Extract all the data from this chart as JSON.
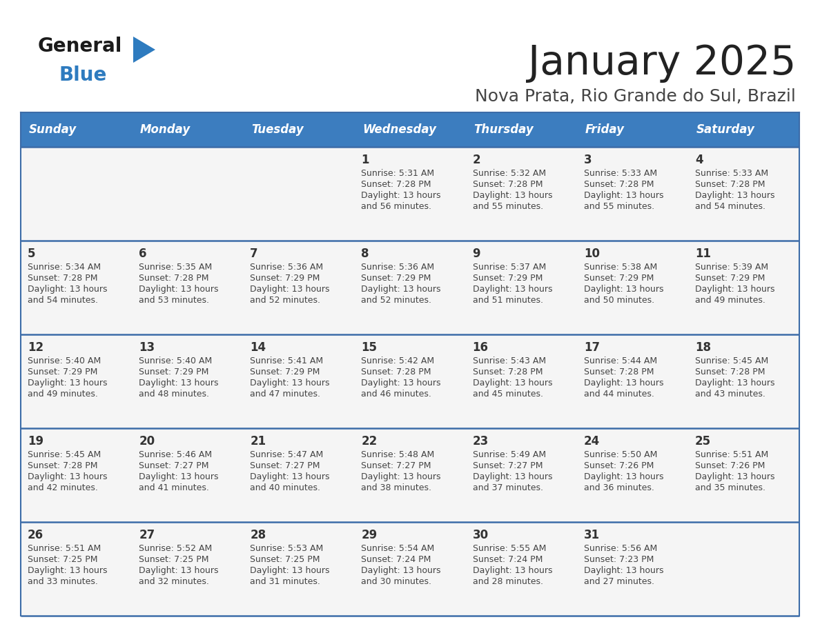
{
  "title": "January 2025",
  "subtitle": "Nova Prata, Rio Grande do Sul, Brazil",
  "days_of_week": [
    "Sunday",
    "Monday",
    "Tuesday",
    "Wednesday",
    "Thursday",
    "Friday",
    "Saturday"
  ],
  "header_bg": "#3c7dbf",
  "header_text": "#ffffff",
  "row_bg": "#f5f5f5",
  "separator_color": "#3c6ca8",
  "cell_text_color": "#444444",
  "day_num_color": "#333333",
  "title_color": "#222222",
  "subtitle_color": "#444444",
  "logo_general_color": "#1a1a1a",
  "logo_blue_color": "#2e7bbf",
  "calendar_data": [
    {
      "day": 1,
      "col": 3,
      "row": 0,
      "sunrise": "5:31 AM",
      "sunset": "7:28 PM",
      "daylight_h": "13 hours",
      "daylight_m": "and 56 minutes."
    },
    {
      "day": 2,
      "col": 4,
      "row": 0,
      "sunrise": "5:32 AM",
      "sunset": "7:28 PM",
      "daylight_h": "13 hours",
      "daylight_m": "and 55 minutes."
    },
    {
      "day": 3,
      "col": 5,
      "row": 0,
      "sunrise": "5:33 AM",
      "sunset": "7:28 PM",
      "daylight_h": "13 hours",
      "daylight_m": "and 55 minutes."
    },
    {
      "day": 4,
      "col": 6,
      "row": 0,
      "sunrise": "5:33 AM",
      "sunset": "7:28 PM",
      "daylight_h": "13 hours",
      "daylight_m": "and 54 minutes."
    },
    {
      "day": 5,
      "col": 0,
      "row": 1,
      "sunrise": "5:34 AM",
      "sunset": "7:28 PM",
      "daylight_h": "13 hours",
      "daylight_m": "and 54 minutes."
    },
    {
      "day": 6,
      "col": 1,
      "row": 1,
      "sunrise": "5:35 AM",
      "sunset": "7:28 PM",
      "daylight_h": "13 hours",
      "daylight_m": "and 53 minutes."
    },
    {
      "day": 7,
      "col": 2,
      "row": 1,
      "sunrise": "5:36 AM",
      "sunset": "7:29 PM",
      "daylight_h": "13 hours",
      "daylight_m": "and 52 minutes."
    },
    {
      "day": 8,
      "col": 3,
      "row": 1,
      "sunrise": "5:36 AM",
      "sunset": "7:29 PM",
      "daylight_h": "13 hours",
      "daylight_m": "and 52 minutes."
    },
    {
      "day": 9,
      "col": 4,
      "row": 1,
      "sunrise": "5:37 AM",
      "sunset": "7:29 PM",
      "daylight_h": "13 hours",
      "daylight_m": "and 51 minutes."
    },
    {
      "day": 10,
      "col": 5,
      "row": 1,
      "sunrise": "5:38 AM",
      "sunset": "7:29 PM",
      "daylight_h": "13 hours",
      "daylight_m": "and 50 minutes."
    },
    {
      "day": 11,
      "col": 6,
      "row": 1,
      "sunrise": "5:39 AM",
      "sunset": "7:29 PM",
      "daylight_h": "13 hours",
      "daylight_m": "and 49 minutes."
    },
    {
      "day": 12,
      "col": 0,
      "row": 2,
      "sunrise": "5:40 AM",
      "sunset": "7:29 PM",
      "daylight_h": "13 hours",
      "daylight_m": "and 49 minutes."
    },
    {
      "day": 13,
      "col": 1,
      "row": 2,
      "sunrise": "5:40 AM",
      "sunset": "7:29 PM",
      "daylight_h": "13 hours",
      "daylight_m": "and 48 minutes."
    },
    {
      "day": 14,
      "col": 2,
      "row": 2,
      "sunrise": "5:41 AM",
      "sunset": "7:29 PM",
      "daylight_h": "13 hours",
      "daylight_m": "and 47 minutes."
    },
    {
      "day": 15,
      "col": 3,
      "row": 2,
      "sunrise": "5:42 AM",
      "sunset": "7:28 PM",
      "daylight_h": "13 hours",
      "daylight_m": "and 46 minutes."
    },
    {
      "day": 16,
      "col": 4,
      "row": 2,
      "sunrise": "5:43 AM",
      "sunset": "7:28 PM",
      "daylight_h": "13 hours",
      "daylight_m": "and 45 minutes."
    },
    {
      "day": 17,
      "col": 5,
      "row": 2,
      "sunrise": "5:44 AM",
      "sunset": "7:28 PM",
      "daylight_h": "13 hours",
      "daylight_m": "and 44 minutes."
    },
    {
      "day": 18,
      "col": 6,
      "row": 2,
      "sunrise": "5:45 AM",
      "sunset": "7:28 PM",
      "daylight_h": "13 hours",
      "daylight_m": "and 43 minutes."
    },
    {
      "day": 19,
      "col": 0,
      "row": 3,
      "sunrise": "5:45 AM",
      "sunset": "7:28 PM",
      "daylight_h": "13 hours",
      "daylight_m": "and 42 minutes."
    },
    {
      "day": 20,
      "col": 1,
      "row": 3,
      "sunrise": "5:46 AM",
      "sunset": "7:27 PM",
      "daylight_h": "13 hours",
      "daylight_m": "and 41 minutes."
    },
    {
      "day": 21,
      "col": 2,
      "row": 3,
      "sunrise": "5:47 AM",
      "sunset": "7:27 PM",
      "daylight_h": "13 hours",
      "daylight_m": "and 40 minutes."
    },
    {
      "day": 22,
      "col": 3,
      "row": 3,
      "sunrise": "5:48 AM",
      "sunset": "7:27 PM",
      "daylight_h": "13 hours",
      "daylight_m": "and 38 minutes."
    },
    {
      "day": 23,
      "col": 4,
      "row": 3,
      "sunrise": "5:49 AM",
      "sunset": "7:27 PM",
      "daylight_h": "13 hours",
      "daylight_m": "and 37 minutes."
    },
    {
      "day": 24,
      "col": 5,
      "row": 3,
      "sunrise": "5:50 AM",
      "sunset": "7:26 PM",
      "daylight_h": "13 hours",
      "daylight_m": "and 36 minutes."
    },
    {
      "day": 25,
      "col": 6,
      "row": 3,
      "sunrise": "5:51 AM",
      "sunset": "7:26 PM",
      "daylight_h": "13 hours",
      "daylight_m": "and 35 minutes."
    },
    {
      "day": 26,
      "col": 0,
      "row": 4,
      "sunrise": "5:51 AM",
      "sunset": "7:25 PM",
      "daylight_h": "13 hours",
      "daylight_m": "and 33 minutes."
    },
    {
      "day": 27,
      "col": 1,
      "row": 4,
      "sunrise": "5:52 AM",
      "sunset": "7:25 PM",
      "daylight_h": "13 hours",
      "daylight_m": "and 32 minutes."
    },
    {
      "day": 28,
      "col": 2,
      "row": 4,
      "sunrise": "5:53 AM",
      "sunset": "7:25 PM",
      "daylight_h": "13 hours",
      "daylight_m": "and 31 minutes."
    },
    {
      "day": 29,
      "col": 3,
      "row": 4,
      "sunrise": "5:54 AM",
      "sunset": "7:24 PM",
      "daylight_h": "13 hours",
      "daylight_m": "and 30 minutes."
    },
    {
      "day": 30,
      "col": 4,
      "row": 4,
      "sunrise": "5:55 AM",
      "sunset": "7:24 PM",
      "daylight_h": "13 hours",
      "daylight_m": "and 28 minutes."
    },
    {
      "day": 31,
      "col": 5,
      "row": 4,
      "sunrise": "5:56 AM",
      "sunset": "7:23 PM",
      "daylight_h": "13 hours",
      "daylight_m": "and 27 minutes."
    }
  ]
}
